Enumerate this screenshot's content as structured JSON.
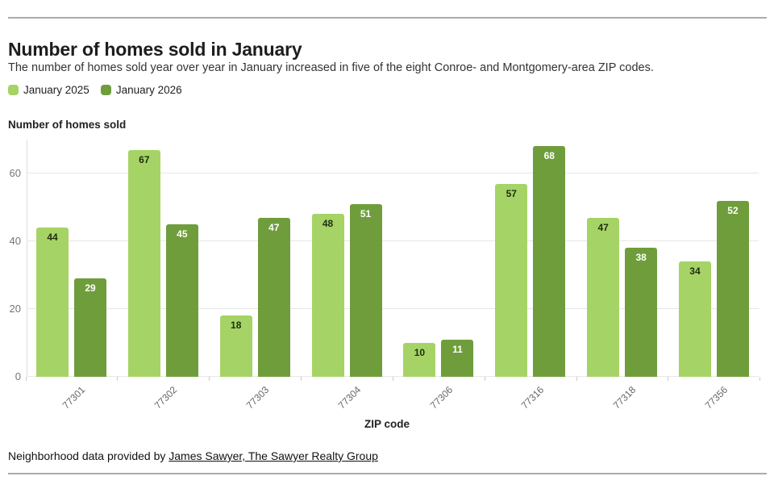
{
  "chart_data": {
    "type": "bar",
    "title": "Number of homes sold in January",
    "subtitle": "The number of homes sold year over year in January increased in five of the eight Conroe- and Montgomery-area ZIP codes.",
    "categories": [
      "77301",
      "77302",
      "77303",
      "77304",
      "77306",
      "77316",
      "77318",
      "77356"
    ],
    "series": [
      {
        "name": "January 2025",
        "color": "#a6d366",
        "label_color": "#1f2d10",
        "values": [
          44,
          67,
          18,
          48,
          10,
          57,
          47,
          34
        ]
      },
      {
        "name": "January 2026",
        "color": "#6f9d3c",
        "label_color": "#ffffff",
        "values": [
          29,
          45,
          47,
          51,
          11,
          68,
          38,
          52
        ]
      }
    ],
    "xlabel": "ZIP code",
    "ylabel": "Number of homes sold",
    "ylim": [
      0,
      70
    ],
    "yticks": [
      0,
      20,
      40,
      60
    ],
    "grid": true,
    "legend_position": "top-left"
  },
  "footer": {
    "prefix": "Neighborhood data provided by ",
    "link_text": "James Sawyer, The Sawyer Realty Group"
  },
  "colors": {
    "series_2025": "#a6d366",
    "series_2026": "#6f9d3c",
    "rule": "#ababab",
    "gridline": "#e7e7e7"
  }
}
